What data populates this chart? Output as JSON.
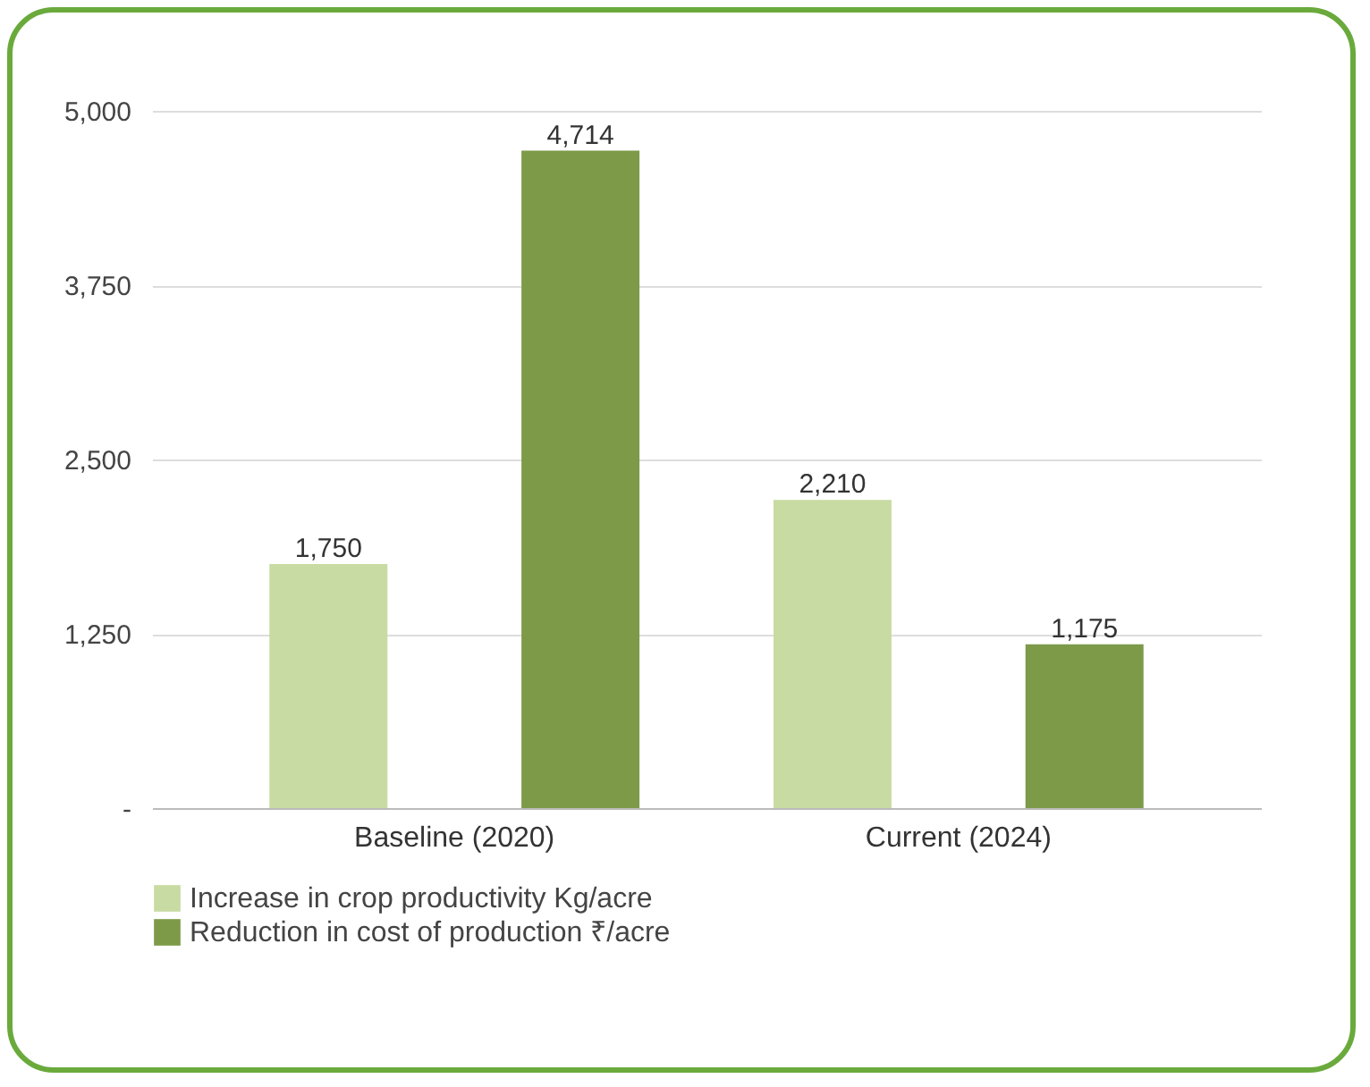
{
  "chart_data": {
    "type": "bar",
    "categories": [
      "Baseline (2020)",
      "Current (2024)"
    ],
    "series": [
      {
        "name": "Increase in crop productivity Kg/acre",
        "color": "#c8dba2",
        "values": [
          1750,
          2210
        ],
        "value_labels": [
          "1,750",
          "2,210"
        ]
      },
      {
        "name": "Reduction in cost of production ₹/acre",
        "color": "#7d9a49",
        "values": [
          4714,
          1175
        ],
        "value_labels": [
          "4,714",
          "1,175"
        ]
      }
    ],
    "ylim": [
      0,
      5000
    ],
    "yticks": [
      {
        "value": 0,
        "label": "-"
      },
      {
        "value": 1250,
        "label": "1,250"
      },
      {
        "value": 2500,
        "label": "2,500"
      },
      {
        "value": 3750,
        "label": "3,750"
      },
      {
        "value": 5000,
        "label": "5,000"
      }
    ],
    "grid": "y",
    "legend": "bottom"
  }
}
